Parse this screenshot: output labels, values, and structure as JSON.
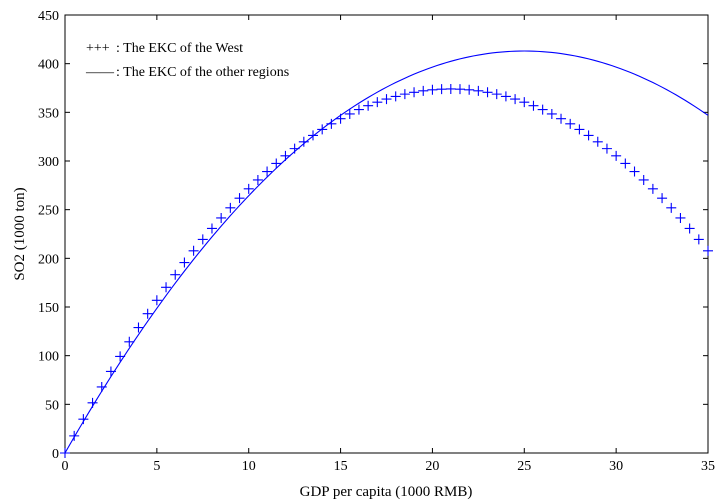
{
  "chart_data": {
    "type": "line",
    "title": "",
    "xlabel": "GDP per capita (1000 RMB)",
    "ylabel": "SO2 (1000 ton)",
    "xlim": [
      0,
      35
    ],
    "ylim": [
      0,
      450
    ],
    "xticks": [
      0,
      5,
      10,
      15,
      20,
      25,
      30,
      35
    ],
    "yticks": [
      0,
      50,
      100,
      150,
      200,
      250,
      300,
      350,
      400,
      450
    ],
    "grid": false,
    "legend_position": "top-left",
    "legend": [
      {
        "marker": "+++",
        "label": " : The EKC of the West"
      },
      {
        "marker": "——",
        "label": " : The EKC of the other regions"
      }
    ],
    "series": [
      {
        "name": "The EKC of the West",
        "style": "plus-markers",
        "color": "#0000ff",
        "model": "quadratic",
        "peak_x": 21,
        "peak_y": 374,
        "x_step": 0.5,
        "x": [
          0,
          5,
          10,
          15,
          17.5,
          20,
          21,
          22.5,
          25,
          27.5,
          30,
          32.5,
          35
        ],
        "y": [
          0,
          159,
          275,
          349,
          367,
          373,
          374,
          372,
          356,
          329,
          290,
          240,
          200
        ]
      },
      {
        "name": "The EKC of the other regions",
        "style": "solid-line",
        "color": "#0000ff",
        "model": "quadratic",
        "peak_x": 25,
        "peak_y": 413,
        "x_step": 0.25,
        "x": [
          0,
          5,
          10,
          15,
          17.5,
          20,
          22.5,
          25,
          27.5,
          30,
          32.5,
          35
        ],
        "y": [
          0,
          150,
          265,
          345,
          370,
          396,
          408,
          413,
          406,
          390,
          367,
          340
        ]
      }
    ]
  }
}
